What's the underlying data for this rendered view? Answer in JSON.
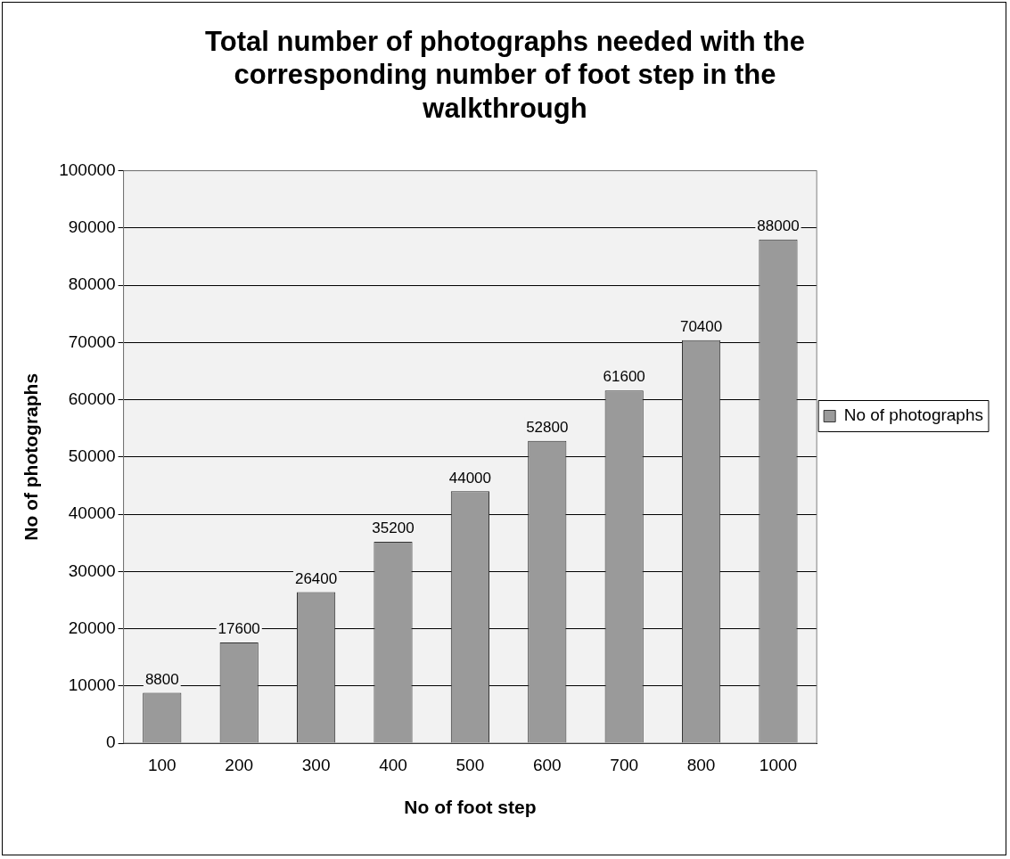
{
  "chart_data": {
    "type": "bar",
    "title": "Total number of photographs needed with the corresponding number of foot step in the walkthrough",
    "xlabel": "No of foot step",
    "ylabel": "No of photographs",
    "categories": [
      "100",
      "200",
      "300",
      "400",
      "500",
      "600",
      "700",
      "800",
      "1000"
    ],
    "series": [
      {
        "name": "No of photographs",
        "color": "#9a9a9a",
        "values": [
          8800,
          17600,
          26400,
          35200,
          44000,
          52800,
          61600,
          70400,
          88000
        ]
      }
    ],
    "ylim": [
      0,
      100000
    ],
    "yticks": [
      0,
      10000,
      20000,
      30000,
      40000,
      50000,
      60000,
      70000,
      80000,
      90000,
      100000
    ],
    "grid": "y",
    "legend": "right",
    "data_labels": true
  }
}
